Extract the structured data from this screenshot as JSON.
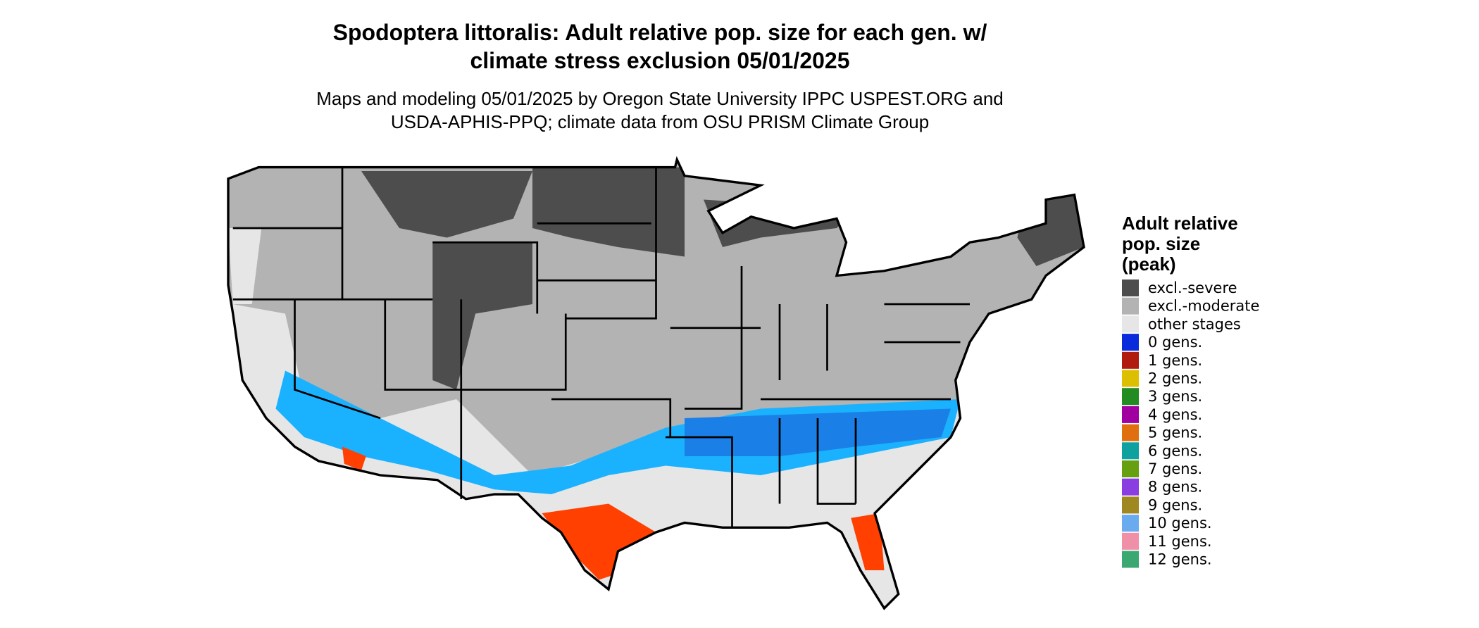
{
  "header": {
    "title_lines": [
      "Spodoptera littoralis: Adult relative pop. size for each gen. w/",
      "climate stress exclusion 05/01/2025"
    ],
    "subtitle_lines": [
      "Maps and modeling 05/01/2025 by Oregon State University IPPC USPEST.ORG and",
      "USDA-APHIS-PPQ; climate data from OSU PRISM Climate Group"
    ]
  },
  "legend": {
    "title_lines": [
      "Adult relative",
      "pop. size",
      "(peak)"
    ],
    "items": [
      {
        "label": "excl.-severe",
        "color": "#4d4d4d"
      },
      {
        "label": "excl.-moderate",
        "color": "#b3b3b3"
      },
      {
        "label": "other stages",
        "color": "#e6e6e6"
      },
      {
        "label": "0 gens.",
        "color": "#0a2bdc"
      },
      {
        "label": "1 gens.",
        "color": "#b01a0f"
      },
      {
        "label": "2 gens.",
        "color": "#dcc000"
      },
      {
        "label": "3 gens.",
        "color": "#228b22"
      },
      {
        "label": "4 gens.",
        "color": "#a000a0"
      },
      {
        "label": "5 gens.",
        "color": "#e0700f"
      },
      {
        "label": "6 gens.",
        "color": "#0fa0a0"
      },
      {
        "label": "7 gens.",
        "color": "#66a010"
      },
      {
        "label": "8 gens.",
        "color": "#8a3de0"
      },
      {
        "label": "9 gens.",
        "color": "#a08820"
      },
      {
        "label": "10 gens.",
        "color": "#6aabf0"
      },
      {
        "label": "11 gens.",
        "color": "#f090a8"
      },
      {
        "label": "12 gens.",
        "color": "#3aa870"
      }
    ]
  }
}
